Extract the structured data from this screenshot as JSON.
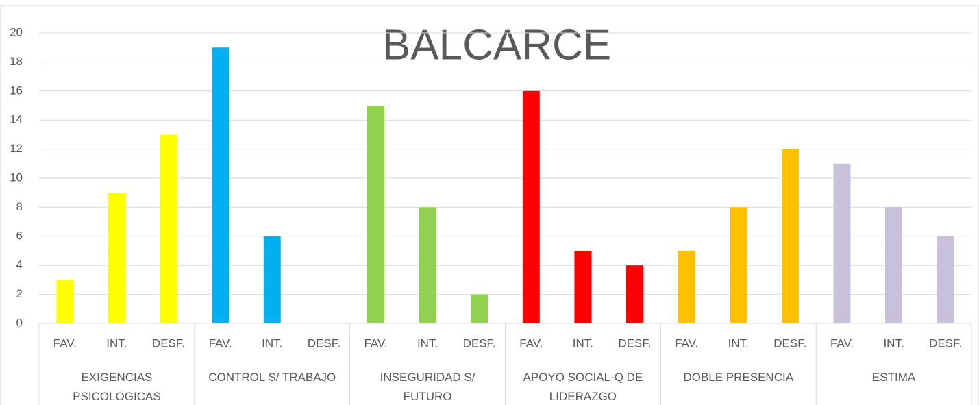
{
  "chart_data": {
    "type": "bar",
    "title": "BALCARCE",
    "groups": [
      {
        "name": "EXIGENCIAS PSICOLOGICAS",
        "color": "#ffff00",
        "categories": [
          "FAV.",
          "INT.",
          "DESF."
        ],
        "values": [
          3,
          9,
          13
        ]
      },
      {
        "name": "CONTROL S/ TRABAJO",
        "color": "#00b0f0",
        "categories": [
          "FAV.",
          "INT.",
          "DESF."
        ],
        "values": [
          19,
          6,
          0
        ]
      },
      {
        "name": "INSEGURIDAD S/ FUTURO",
        "color": "#92d050",
        "categories": [
          "FAV.",
          "INT.",
          "DESF."
        ],
        "values": [
          15,
          8,
          2
        ]
      },
      {
        "name": "APOYO SOCIAL-Q DE LIDERAZGO",
        "color": "#ff0000",
        "categories": [
          "FAV.",
          "INT.",
          "DESF."
        ],
        "values": [
          16,
          5,
          4
        ]
      },
      {
        "name": "DOBLE PRESENCIA",
        "color": "#ffc000",
        "categories": [
          "FAV.",
          "INT.",
          "DESF."
        ],
        "values": [
          5,
          8,
          12
        ]
      },
      {
        "name": "ESTIMA",
        "color": "#c9c0dc",
        "categories": [
          "FAV.",
          "INT.",
          "DESF."
        ],
        "values": [
          11,
          8,
          6
        ]
      }
    ],
    "ylim": [
      0,
      20
    ],
    "yticks": [
      0,
      2,
      4,
      6,
      8,
      10,
      12,
      14,
      16,
      18,
      20
    ],
    "grid": true
  }
}
